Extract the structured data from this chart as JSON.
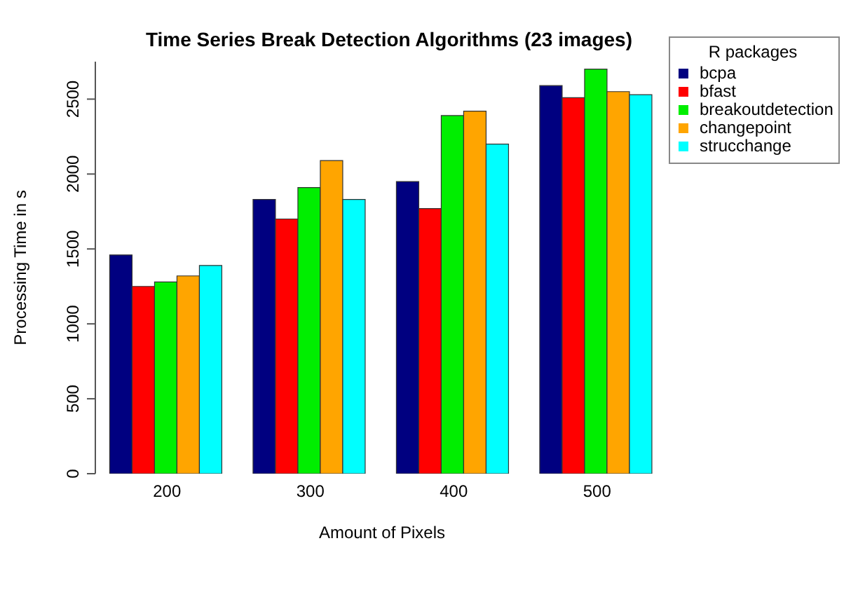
{
  "chart_data": {
    "type": "bar",
    "title": "Time Series Break Detection Algorithms (23 images)",
    "xlabel": "Amount of Pixels",
    "ylabel": "Processing Time in s",
    "legend_title": "R packages",
    "categories": [
      "200",
      "300",
      "400",
      "500"
    ],
    "series": [
      {
        "name": "bcpa",
        "color": "#000080",
        "values": [
          1460,
          1830,
          1950,
          2590
        ]
      },
      {
        "name": "bfast",
        "color": "#ff0000",
        "values": [
          1250,
          1700,
          1770,
          2510
        ]
      },
      {
        "name": "breakoutdetection",
        "color": "#00ee00",
        "values": [
          1280,
          1910,
          2390,
          2700
        ]
      },
      {
        "name": "changepoint",
        "color": "#ffa500",
        "values": [
          1320,
          2090,
          2420,
          2550
        ]
      },
      {
        "name": "strucchange",
        "color": "#00ffff",
        "values": [
          1390,
          1830,
          2200,
          2530
        ]
      }
    ],
    "ylim": [
      0,
      2750
    ],
    "yticks": [
      0,
      500,
      1000,
      1500,
      2000,
      2500
    ],
    "grid": false,
    "legend": "top right"
  }
}
